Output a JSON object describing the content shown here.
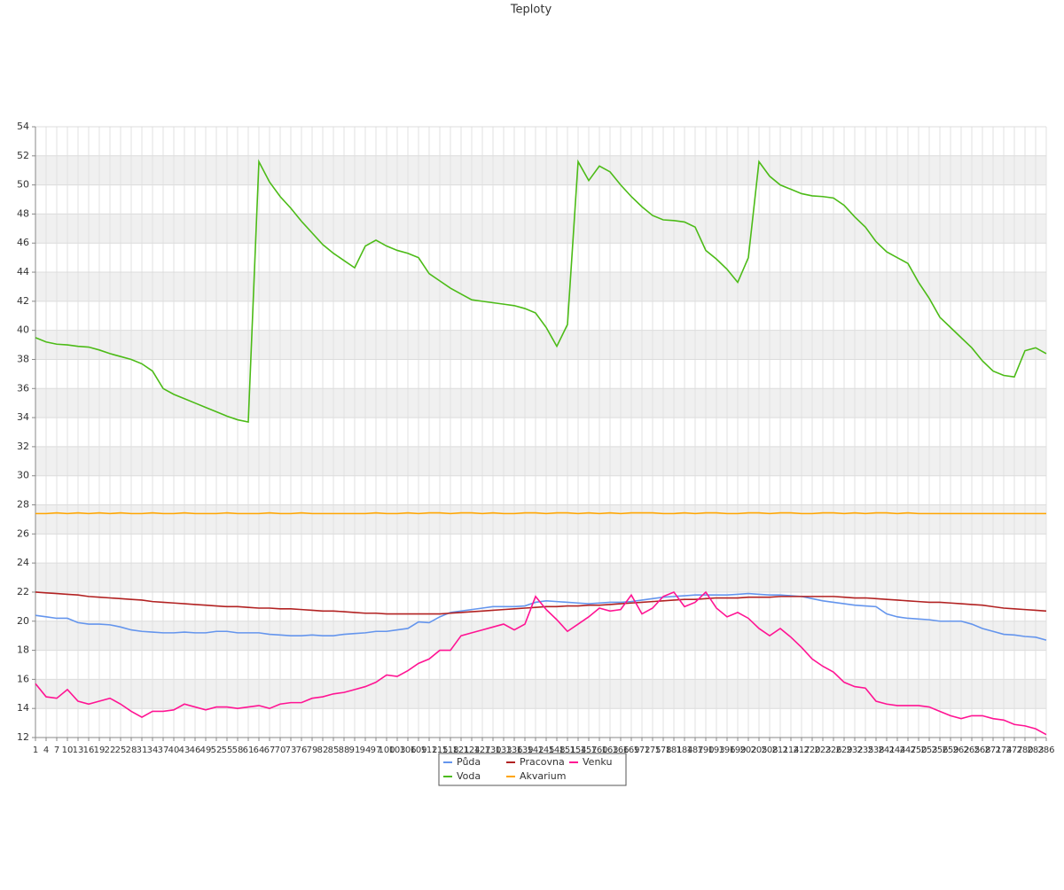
{
  "chart_data": {
    "type": "line",
    "title": "Teploty",
    "x": [
      1,
      4,
      7,
      10,
      13,
      16,
      19,
      22,
      25,
      28,
      31,
      34,
      37,
      40,
      43,
      46,
      49,
      52,
      55,
      58,
      61,
      64,
      67,
      70,
      73,
      76,
      79,
      82,
      85,
      88,
      91,
      94,
      97,
      100,
      103,
      106,
      109,
      112,
      115,
      118,
      121,
      124,
      127,
      130,
      133,
      136,
      139,
      142,
      145,
      148,
      151,
      154,
      157,
      160,
      163,
      166,
      169,
      172,
      175,
      178,
      181,
      184,
      187,
      190,
      193,
      196,
      199,
      202,
      205,
      208,
      211,
      214,
      217,
      220,
      223,
      226,
      229,
      232,
      235,
      238,
      241,
      244,
      247,
      250,
      253,
      256,
      259,
      262,
      265,
      268,
      271,
      274,
      277,
      280,
      283,
      286
    ],
    "xlim": [
      1,
      286
    ],
    "ylim": [
      12,
      54
    ],
    "yticks": [
      12,
      14,
      16,
      18,
      20,
      22,
      24,
      26,
      28,
      30,
      32,
      34,
      36,
      38,
      40,
      42,
      44,
      46,
      48,
      50,
      52,
      54
    ],
    "grid": true,
    "legend": "bottom",
    "series": [
      {
        "name": "Půda",
        "color": "#6495ed",
        "values": [
          20.4,
          20.3,
          20.2,
          20.2,
          19.9,
          19.8,
          19.8,
          19.75,
          19.6,
          19.4,
          19.3,
          19.25,
          19.2,
          19.2,
          19.25,
          19.2,
          19.2,
          19.3,
          19.3,
          19.2,
          19.2,
          19.2,
          19.1,
          19.05,
          19.0,
          19.0,
          19.05,
          19.0,
          19.0,
          19.1,
          19.15,
          19.2,
          19.3,
          19.3,
          19.4,
          19.5,
          19.95,
          19.9,
          20.3,
          20.6,
          20.7,
          20.8,
          20.9,
          21.0,
          21.0,
          21.0,
          21.05,
          21.3,
          21.4,
          21.35,
          21.3,
          21.25,
          21.2,
          21.25,
          21.3,
          21.3,
          21.35,
          21.45,
          21.55,
          21.65,
          21.7,
          21.75,
          21.8,
          21.8,
          21.8,
          21.8,
          21.85,
          21.9,
          21.85,
          21.8,
          21.8,
          21.75,
          21.7,
          21.55,
          21.4,
          21.3,
          21.2,
          21.1,
          21.05,
          21.0,
          20.5,
          20.3,
          20.2,
          20.15,
          20.1,
          20.0,
          20.0,
          20.0,
          19.8,
          19.5,
          19.3,
          19.1,
          19.05,
          18.95,
          18.9,
          18.7
        ]
      },
      {
        "name": "Pracovna",
        "color": "#b22222",
        "values": [
          22.0,
          21.95,
          21.9,
          21.85,
          21.8,
          21.7,
          21.65,
          21.6,
          21.55,
          21.5,
          21.45,
          21.35,
          21.3,
          21.25,
          21.2,
          21.15,
          21.1,
          21.05,
          21.0,
          21.0,
          20.95,
          20.9,
          20.9,
          20.85,
          20.85,
          20.8,
          20.75,
          20.7,
          20.7,
          20.65,
          20.6,
          20.55,
          20.55,
          20.5,
          20.5,
          20.5,
          20.5,
          20.5,
          20.5,
          20.55,
          20.6,
          20.65,
          20.7,
          20.75,
          20.8,
          20.85,
          20.9,
          20.95,
          21.0,
          21.0,
          21.05,
          21.05,
          21.1,
          21.1,
          21.15,
          21.2,
          21.25,
          21.3,
          21.35,
          21.4,
          21.45,
          21.5,
          21.5,
          21.55,
          21.6,
          21.6,
          21.6,
          21.65,
          21.65,
          21.65,
          21.7,
          21.7,
          21.7,
          21.7,
          21.7,
          21.7,
          21.65,
          21.6,
          21.6,
          21.55,
          21.5,
          21.45,
          21.4,
          21.35,
          21.3,
          21.3,
          21.25,
          21.2,
          21.15,
          21.1,
          21.0,
          20.9,
          20.85,
          20.8,
          20.75,
          20.7
        ]
      },
      {
        "name": "Venku",
        "color": "#ff1493",
        "values": [
          15.7,
          14.8,
          14.7,
          15.3,
          14.5,
          14.3,
          14.5,
          14.7,
          14.3,
          13.8,
          13.4,
          13.8,
          13.8,
          13.9,
          14.3,
          14.1,
          13.9,
          14.1,
          14.1,
          14.0,
          14.1,
          14.2,
          14.0,
          14.3,
          14.4,
          14.4,
          14.7,
          14.8,
          15.0,
          15.1,
          15.3,
          15.5,
          15.8,
          16.3,
          16.2,
          16.6,
          17.1,
          17.4,
          18.0,
          18.0,
          19.0,
          19.2,
          19.4,
          19.6,
          19.8,
          19.4,
          19.8,
          21.7,
          20.8,
          20.1,
          19.3,
          19.8,
          20.3,
          20.9,
          20.7,
          20.8,
          21.8,
          20.5,
          20.9,
          21.7,
          22.0,
          21.0,
          21.3,
          22.0,
          20.9,
          20.3,
          20.6,
          20.2,
          19.5,
          19.0,
          19.5,
          18.9,
          18.2,
          17.4,
          16.9,
          16.5,
          15.8,
          15.5,
          15.4,
          14.5,
          14.3,
          14.2,
          14.2,
          14.2,
          14.1,
          13.8,
          13.5,
          13.3,
          13.5,
          13.5,
          13.3,
          13.2,
          12.9,
          12.8,
          12.6,
          12.2
        ]
      },
      {
        "name": "Voda",
        "color": "#4cbb17",
        "values": [
          39.5,
          39.2,
          39.05,
          39.0,
          38.9,
          38.85,
          38.65,
          38.4,
          38.2,
          38.0,
          37.7,
          37.2,
          36.0,
          35.6,
          35.3,
          35.0,
          34.7,
          34.4,
          34.1,
          33.85,
          33.7,
          51.6,
          50.2,
          49.2,
          48.4,
          47.5,
          46.7,
          45.9,
          45.3,
          44.8,
          44.3,
          45.8,
          46.2,
          45.8,
          45.5,
          45.3,
          45.0,
          43.9,
          43.4,
          42.9,
          42.5,
          42.1,
          42.0,
          41.9,
          41.8,
          41.7,
          41.5,
          41.2,
          40.2,
          38.9,
          40.4,
          51.6,
          50.3,
          51.3,
          50.9,
          50.0,
          49.2,
          48.5,
          47.9,
          47.6,
          47.55,
          47.45,
          47.1,
          45.5,
          44.9,
          44.2,
          43.3,
          45,
          51.6,
          50.6,
          50.0,
          49.7,
          49.4,
          49.25,
          49.2,
          49.1,
          48.6,
          47.8,
          47.1,
          46.1,
          45.4,
          45.0,
          44.6,
          43.3,
          42.2,
          40.9,
          40.2,
          39.5,
          38.8,
          37.9,
          37.2,
          36.9,
          36.8,
          38.6,
          38.8,
          38.4
        ]
      },
      {
        "name": "Akvarium",
        "color": "#ffa500",
        "values": [
          27.4,
          27.4,
          27.45,
          27.4,
          27.45,
          27.4,
          27.45,
          27.4,
          27.45,
          27.4,
          27.4,
          27.45,
          27.4,
          27.4,
          27.45,
          27.4,
          27.4,
          27.4,
          27.45,
          27.4,
          27.4,
          27.4,
          27.45,
          27.4,
          27.4,
          27.45,
          27.4,
          27.4,
          27.4,
          27.4,
          27.4,
          27.4,
          27.45,
          27.4,
          27.4,
          27.45,
          27.4,
          27.45,
          27.45,
          27.4,
          27.45,
          27.45,
          27.4,
          27.45,
          27.4,
          27.4,
          27.45,
          27.45,
          27.4,
          27.45,
          27.45,
          27.4,
          27.45,
          27.4,
          27.45,
          27.4,
          27.45,
          27.45,
          27.45,
          27.4,
          27.4,
          27.45,
          27.4,
          27.45,
          27.45,
          27.4,
          27.4,
          27.45,
          27.45,
          27.4,
          27.45,
          27.45,
          27.4,
          27.4,
          27.45,
          27.45,
          27.4,
          27.45,
          27.4,
          27.45,
          27.45,
          27.4,
          27.45,
          27.4,
          27.4,
          27.4,
          27.4,
          27.4,
          27.4,
          27.4,
          27.4,
          27.4,
          27.4,
          27.4,
          27.4,
          27.4
        ]
      }
    ]
  }
}
